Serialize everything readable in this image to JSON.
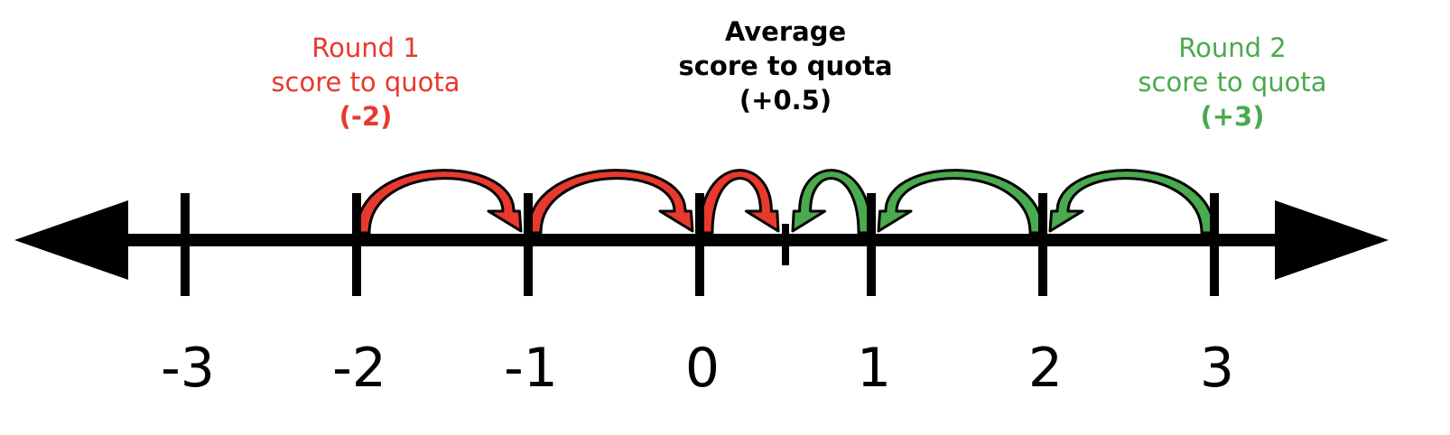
{
  "colors": {
    "round1": "#e8392e",
    "round2": "#4aaa4e",
    "average": "#000000",
    "axis": "#000000"
  },
  "labels": {
    "round1": {
      "line1": "Round 1",
      "line2": "score to quota",
      "value": "(-2)"
    },
    "average": {
      "line1": "Average",
      "line2": "score to quota",
      "value": "(+0.5)"
    },
    "round2": {
      "line1": "Round 2",
      "line2": "score to quota",
      "value": "(+3)"
    }
  },
  "number_line": {
    "ticks": [
      -3,
      -2,
      -1,
      0,
      1,
      2,
      3
    ],
    "tick_labels": [
      "-3",
      "-2",
      "-1",
      "0",
      "1",
      "2",
      "3"
    ],
    "average_marker": 0.5
  },
  "jumps": {
    "round1": [
      {
        "from": -2,
        "to": -1
      },
      {
        "from": -1,
        "to": 0
      },
      {
        "from": 0,
        "to": 0.5
      }
    ],
    "round2": [
      {
        "from": 3,
        "to": 2
      },
      {
        "from": 2,
        "to": 1
      },
      {
        "from": 1,
        "to": 0.5
      }
    ]
  }
}
